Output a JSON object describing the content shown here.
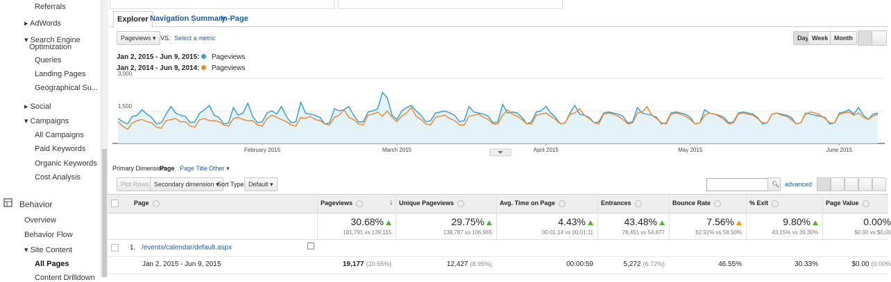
{
  "sidebar": {
    "items": [
      "Referrals",
      "AdWords",
      "Search Engine",
      "Optimization",
      "Queries",
      "Landing Pages",
      "Geographical Su...",
      "Social",
      "Campaigns",
      "All Campaigns",
      "Paid Keywords",
      "Organic Keywords",
      "Cost Analysis",
      "Behavior",
      "Overview",
      "Behavior Flow",
      "Site Content",
      "All Pages",
      "Content Drilldown"
    ]
  },
  "tabs": [
    "Explorer",
    "Navigation Summary",
    "In-Page"
  ],
  "controls": {
    "metric": "Pageviews",
    "vs": "VS.",
    "select_metric": "Select a metric",
    "periods": [
      "Day",
      "Week",
      "Month"
    ]
  },
  "chart": {
    "type": "line",
    "series": [
      {
        "name": "Pageviews",
        "range": "Jan 2, 2015 - Jun 9, 2015:",
        "color": "#3a9fd0",
        "values": [
          1150,
          1000,
          900,
          1250,
          1300,
          1550,
          1350,
          1200,
          900,
          950,
          1350,
          1700,
          1400,
          1300,
          1250,
          950,
          1000,
          1400,
          1550,
          1750,
          1300,
          1200,
          900,
          950,
          1650,
          1300,
          1400,
          1850,
          1250,
          950,
          1000,
          1400,
          1500,
          1350,
          1700,
          1250,
          950,
          1000,
          1900,
          1400,
          1350,
          1300,
          1200,
          900,
          950,
          1600,
          1500,
          1550,
          1700,
          1300,
          1000,
          1000,
          1450,
          1500,
          1600,
          2350,
          2100,
          1300,
          1100,
          1500,
          1650,
          1750,
          1500,
          1300,
          1000,
          1050,
          1400,
          1450,
          1500,
          1400,
          1300,
          1000,
          1050,
          1700,
          1450,
          1400,
          1350,
          1250,
          950,
          1000,
          1800,
          1400,
          1450,
          1400,
          1200,
          900,
          1000,
          1450,
          1500,
          1700,
          1400,
          1200,
          900,
          950,
          1400,
          1750,
          1350,
          1300,
          1200,
          950,
          1000,
          1400,
          1450,
          1400,
          1350,
          1250,
          950,
          1000,
          1650,
          1400,
          1350,
          1300,
          1200,
          900,
          950,
          1400,
          1450,
          1400,
          1350,
          1200,
          900,
          950,
          1550,
          1400,
          1350,
          1300,
          1200,
          950,
          1000,
          1400,
          1450,
          1400,
          1350,
          1200,
          900,
          950,
          1350,
          1400,
          1350,
          1300,
          1200,
          900,
          950,
          1400,
          1350,
          1300,
          1250,
          1200,
          900,
          950,
          1400,
          1450,
          1550,
          1350,
          1650,
          1300,
          1100,
          1350,
          1400
        ]
      },
      {
        "name": "Pageviews",
        "range": "Jan 2, 2014 - Jun 9, 2014:",
        "color": "#ed8b2c",
        "values": [
          1000,
          800,
          650,
          950,
          1050,
          1100,
          1000,
          950,
          750,
          700,
          1050,
          1100,
          1150,
          1000,
          1000,
          800,
          750,
          1100,
          1150,
          1050,
          1050,
          1000,
          850,
          800,
          1150,
          1200,
          1100,
          1050,
          1050,
          850,
          800,
          1150,
          1300,
          1200,
          1100,
          1000,
          850,
          800,
          1200,
          1150,
          1250,
          1100,
          1050,
          900,
          850,
          1200,
          1300,
          1550,
          1200,
          1100,
          900,
          850,
          1300,
          1350,
          1450,
          1250,
          1500,
          1200,
          1000,
          1250,
          1400,
          1650,
          1250,
          1100,
          900,
          850,
          1200,
          1250,
          1300,
          1150,
          1050,
          850,
          850,
          1250,
          1300,
          1350,
          1200,
          1100,
          900,
          900,
          1300,
          1550,
          1350,
          1250,
          1100,
          900,
          900,
          1300,
          1350,
          1400,
          1250,
          1100,
          900,
          950,
          1350,
          1400,
          1600,
          1300,
          1150,
          950,
          900,
          1350,
          1400,
          1350,
          1250,
          1100,
          900,
          950,
          1400,
          1450,
          1700,
          1300,
          1150,
          950,
          900,
          1350,
          1400,
          1350,
          1250,
          1100,
          900,
          950,
          1300,
          1400,
          1350,
          1250,
          1100,
          900,
          950,
          1350,
          1400,
          1350,
          1300,
          1150,
          950,
          950,
          1350,
          1400,
          1300,
          1250,
          1100,
          900,
          950,
          1350,
          1450,
          1400,
          1300,
          1150,
          950,
          950,
          1350,
          1400,
          1450,
          1300,
          1400,
          1200,
          1100,
          1250,
          1350
        ]
      }
    ],
    "xlim": [
      0,
      158
    ],
    "xticks": [
      {
        "value": 30,
        "label": "February 2015"
      },
      {
        "value": 58,
        "label": "March 2015"
      },
      {
        "value": 89,
        "label": "April 2015"
      },
      {
        "value": 119,
        "label": "May 2015"
      },
      {
        "value": 150,
        "label": "June 2015"
      }
    ],
    "ylim": [
      0,
      3000
    ],
    "yticks": [
      {
        "value": 1500,
        "label": "1,500"
      },
      {
        "value": 3000,
        "label": "3,000"
      }
    ],
    "grid": true,
    "area": true
  },
  "dimension": {
    "label": "Primary Dimension:",
    "current": "Page",
    "options": [
      "Page Title",
      "Other"
    ]
  },
  "toolbar": {
    "plot_rows": "Plot Rows",
    "secondary": "Secondary dimension",
    "sort_label": "Sort Type:",
    "sort": "Default",
    "advanced": "advanced"
  },
  "table": {
    "columns": [
      "Page",
      "Pageviews",
      "Unique Pageviews",
      "Avg. Time on Page",
      "Entrances",
      "Bounce Rate",
      "% Exit",
      "Page Value"
    ],
    "summary": [
      [
        "30.68%",
        "181,791 vs 139,115"
      ],
      [
        "29.75%",
        "138,787 vs 106,965"
      ],
      [
        "4.43%",
        "00:01:14 vs 00:01:11"
      ],
      [
        "43.48%",
        "78,451 vs 54,677"
      ],
      [
        "7.56%",
        "62.92% vs 58.50%"
      ],
      [
        "9.80%",
        "43.15% vs 39.30%"
      ],
      [
        "0.00%",
        "$0.00 vs $0.00"
      ]
    ],
    "rows": [
      {
        "index": "1.",
        "page": "/events/calendar/default.aspx",
        "range": "Jan 2, 2015 - Jun 9, 2015",
        "cells": [
          [
            "19,177",
            "(10.55%)"
          ],
          [
            "12,427",
            "(8.95%)"
          ],
          [
            "00:00:59"
          ],
          [
            "5,272",
            "(6.72%)"
          ],
          [
            "46.55%"
          ],
          [
            "30.33%"
          ],
          [
            "$0.00",
            "(0.00%"
          ]
        ]
      }
    ]
  }
}
